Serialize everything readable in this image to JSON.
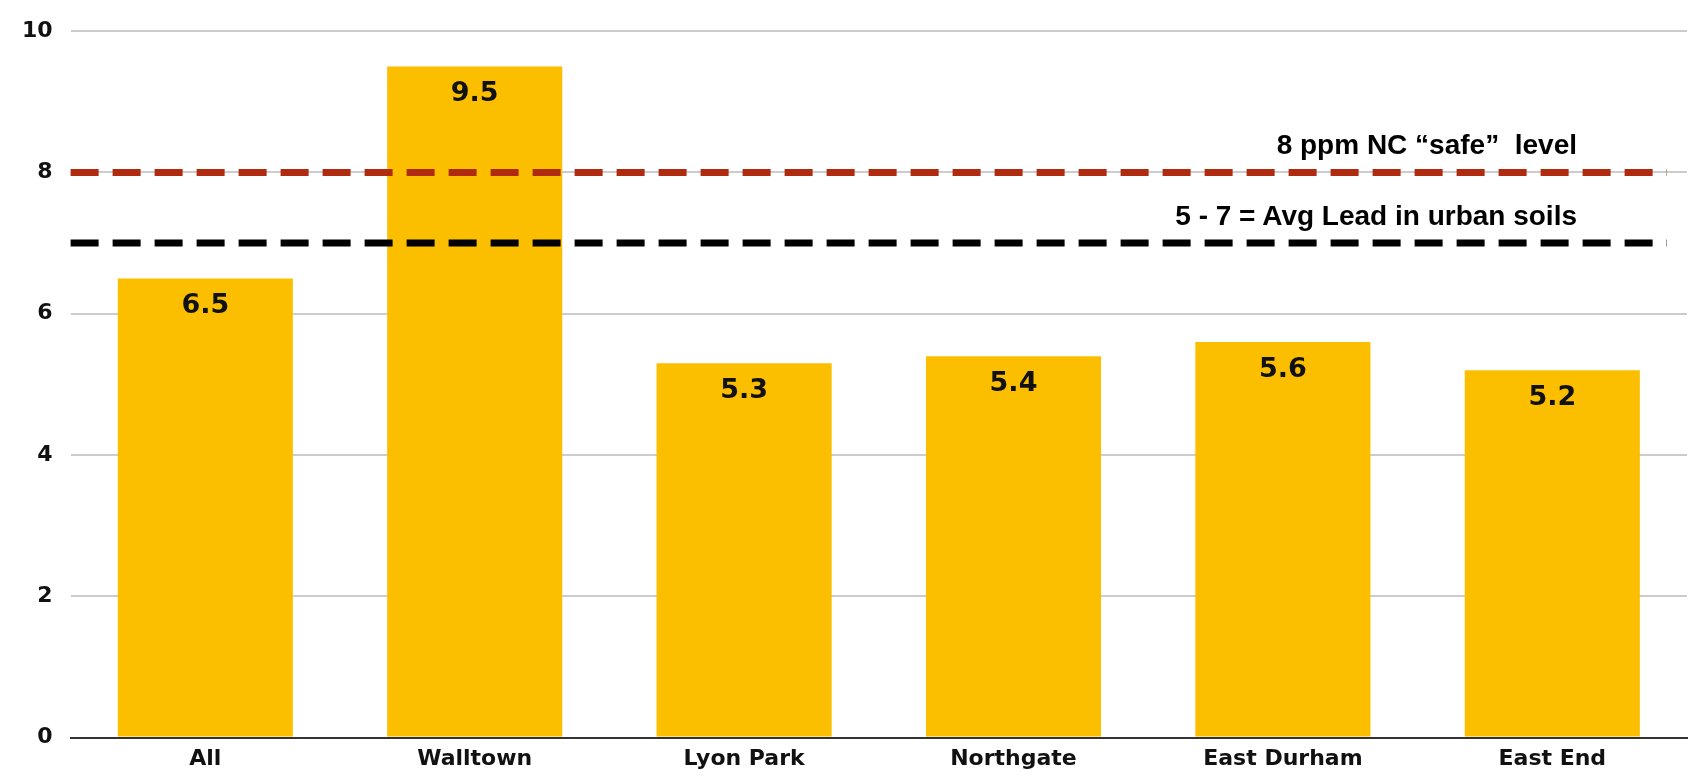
{
  "chart_data": {
    "type": "bar",
    "categories": [
      "All",
      "Walltown",
      "Lyon Park",
      "Northgate",
      "East Durham",
      "East End"
    ],
    "values": [
      6.5,
      9.5,
      5.3,
      5.4,
      5.6,
      5.2
    ],
    "color": "#fbbf00",
    "ylim": [
      0,
      10
    ],
    "yticks": [
      0,
      2,
      4,
      6,
      8,
      10
    ],
    "grid": "y",
    "legend": false,
    "data_labels": true,
    "ref_lines": [
      {
        "axis": "y",
        "value": 8,
        "label": "8 ppm NC “safe”  level",
        "color": "#b02a10",
        "line_style": "dashed"
      },
      {
        "axis": "y",
        "value": 7,
        "label": "5 - 7 = Avg Lead in urban soils",
        "color": "#000000",
        "line_style": "dashed"
      }
    ]
  }
}
